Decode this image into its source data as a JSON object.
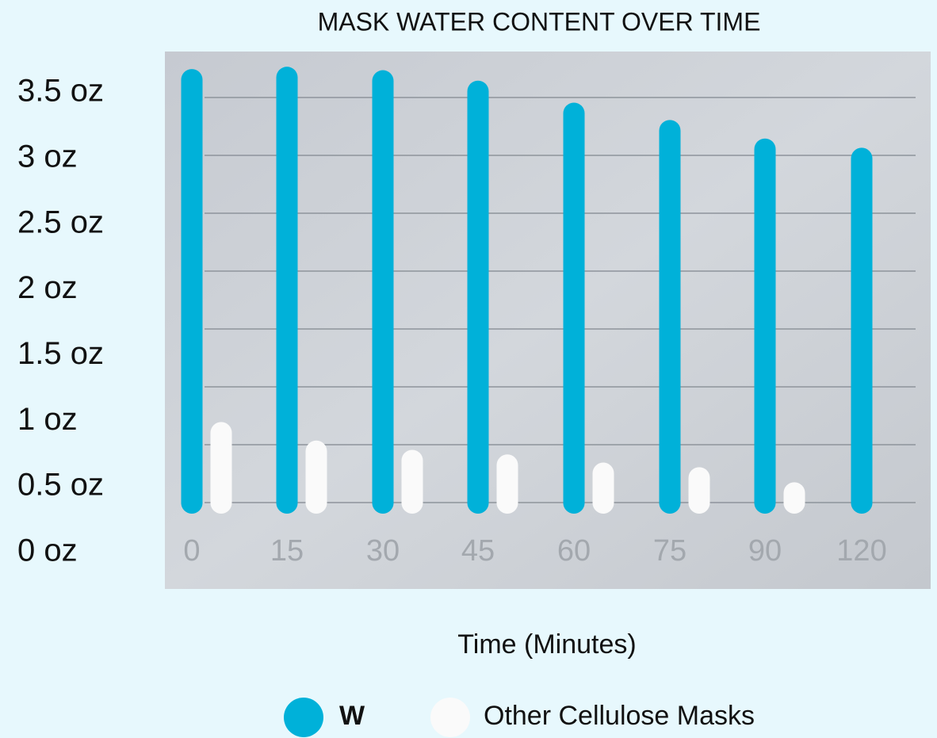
{
  "chart_data": {
    "type": "bar",
    "title": "MASK WATER CONTENT OVER TIME",
    "x_label": "Time (Minutes)",
    "categories": [
      "0",
      "15",
      "30",
      "45",
      "60",
      "75",
      "90",
      "120"
    ],
    "series": [
      {
        "name": "W",
        "color": "#00b1d9",
        "values": [
          3.65,
          3.67,
          3.64,
          3.55,
          3.36,
          3.21,
          3.05,
          2.97
        ]
      },
      {
        "name": "Other Cellulose Masks",
        "color": "#fafafa",
        "values": [
          0.6,
          0.44,
          0.36,
          0.32,
          0.25,
          0.21,
          0.08,
          null
        ]
      }
    ],
    "ylim": [
      0,
      3.5
    ],
    "yticks": [
      {
        "value": 0,
        "label": "0 oz"
      },
      {
        "value": 0.5,
        "label": "0.5 oz"
      },
      {
        "value": 1,
        "label": "1 oz"
      },
      {
        "value": 1.5,
        "label": "1.5 oz"
      },
      {
        "value": 2,
        "label": "2 oz"
      },
      {
        "value": 2.5,
        "label": "2.5 oz"
      },
      {
        "value": 3,
        "label": "3 oz"
      },
      {
        "value": 3.5,
        "label": "3.5 oz"
      }
    ],
    "grid": true
  }
}
